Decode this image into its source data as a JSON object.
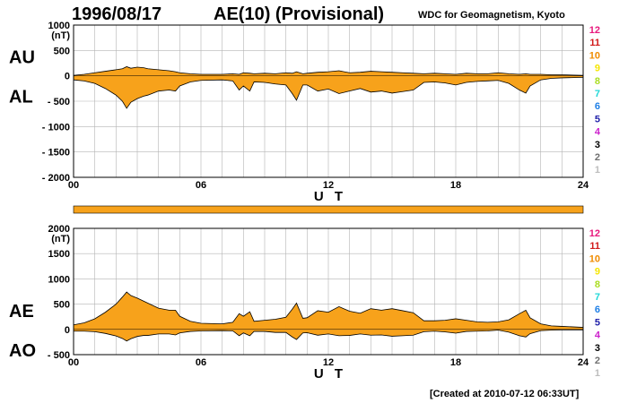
{
  "header": {
    "date": "1996/08/17",
    "title": "AE(10) (Provisional)",
    "source": "WDC for Geomagnetism, Kyoto"
  },
  "footer": {
    "created": "[Created at 2010-07-12 06:33UT]"
  },
  "colors": {
    "fill": "#f7a21b",
    "line": "#000000",
    "grid": "#b4b4b4"
  },
  "legend": [
    {
      "label": "12",
      "color": "#e8197d"
    },
    {
      "label": "11",
      "color": "#d11a1a"
    },
    {
      "label": "10",
      "color": "#f08c00"
    },
    {
      "label": "9",
      "color": "#f5e600"
    },
    {
      "label": "8",
      "color": "#aadd22"
    },
    {
      "label": "7",
      "color": "#22d8d8"
    },
    {
      "label": "6",
      "color": "#1e7fe6"
    },
    {
      "label": "5",
      "color": "#2222aa"
    },
    {
      "label": "4",
      "color": "#cc22cc"
    },
    {
      "label": "3",
      "color": "#000000"
    },
    {
      "label": "2",
      "color": "#707070"
    },
    {
      "label": "1",
      "color": "#bdbdbd"
    }
  ],
  "chart_data": [
    {
      "type": "area",
      "panel": "upper",
      "left_label_top": "AU",
      "left_label_bottom": "AL",
      "unit": "(nT)",
      "xlabel": "U T",
      "xlim": [
        0,
        24
      ],
      "ylim": [
        -2000,
        1000
      ],
      "yticks": [
        1000,
        500,
        0,
        -500,
        -1000,
        -1500,
        -2000
      ],
      "ytick_labels": [
        "1000",
        "500",
        "0",
        "- 500",
        "- 1000",
        "- 1500",
        "- 2000"
      ],
      "xticks": [
        0,
        6,
        12,
        18,
        24
      ],
      "xtick_labels": [
        "00",
        "06",
        "12",
        "18",
        "24"
      ],
      "x": [
        0,
        0.5,
        1,
        1.5,
        2,
        2.3,
        2.5,
        2.7,
        3,
        3.3,
        3.5,
        4,
        4.5,
        4.8,
        5,
        5.5,
        6,
        7,
        7.5,
        7.8,
        8,
        8.3,
        8.5,
        9,
        9.5,
        10,
        10.3,
        10.5,
        10.8,
        11,
        11.5,
        12,
        12.5,
        13,
        13.5,
        14,
        14.5,
        15,
        15.5,
        16,
        16.5,
        17,
        17.5,
        18,
        18.5,
        19,
        19.5,
        20,
        20.5,
        21,
        21.3,
        21.5,
        22,
        22.5,
        23,
        24
      ],
      "series": [
        {
          "name": "AU",
          "values": [
            10,
            30,
            60,
            90,
            120,
            140,
            180,
            150,
            170,
            160,
            140,
            120,
            100,
            80,
            60,
            40,
            30,
            30,
            40,
            30,
            60,
            50,
            40,
            50,
            40,
            60,
            50,
            80,
            40,
            50,
            70,
            80,
            100,
            60,
            70,
            90,
            80,
            70,
            60,
            50,
            40,
            50,
            40,
            30,
            50,
            40,
            40,
            60,
            40,
            30,
            40,
            30,
            30,
            20,
            20,
            10
          ]
        },
        {
          "name": "AL",
          "values": [
            -80,
            -100,
            -150,
            -250,
            -380,
            -500,
            -640,
            -520,
            -450,
            -400,
            -380,
            -300,
            -280,
            -300,
            -200,
            -120,
            -90,
            -80,
            -100,
            -280,
            -200,
            -300,
            -120,
            -130,
            -160,
            -180,
            -350,
            -480,
            -180,
            -180,
            -300,
            -260,
            -350,
            -300,
            -250,
            -320,
            -300,
            -340,
            -310,
            -280,
            -130,
            -120,
            -140,
            -180,
            -130,
            -110,
            -100,
            -90,
            -150,
            -280,
            -340,
            -200,
            -80,
            -50,
            -40,
            -30
          ]
        }
      ]
    },
    {
      "type": "area",
      "panel": "lower",
      "left_label_top": "AE",
      "left_label_bottom": "AO",
      "unit": "(nT)",
      "xlabel": "U T",
      "xlim": [
        0,
        24
      ],
      "ylim": [
        -500,
        2000
      ],
      "yticks": [
        2000,
        1500,
        1000,
        500,
        0,
        -500
      ],
      "ytick_labels": [
        "2000",
        "1500",
        "1000",
        "500",
        "0",
        "- 500"
      ],
      "xticks": [
        0,
        6,
        12,
        18,
        24
      ],
      "xtick_labels": [
        "00",
        "06",
        "12",
        "18",
        "24"
      ],
      "x": [
        0,
        0.5,
        1,
        1.5,
        2,
        2.3,
        2.5,
        2.7,
        3,
        3.3,
        3.5,
        4,
        4.5,
        4.8,
        5,
        5.5,
        6,
        7,
        7.5,
        7.8,
        8,
        8.3,
        8.5,
        9,
        9.5,
        10,
        10.3,
        10.5,
        10.8,
        11,
        11.5,
        12,
        12.5,
        13,
        13.5,
        14,
        14.5,
        15,
        15.5,
        16,
        16.5,
        17,
        17.5,
        18,
        18.5,
        19,
        19.5,
        20,
        20.5,
        21,
        21.3,
        21.5,
        22,
        22.5,
        23,
        24
      ],
      "series": [
        {
          "name": "AE",
          "values": [
            90,
            130,
            210,
            340,
            500,
            640,
            740,
            670,
            620,
            560,
            520,
            420,
            380,
            380,
            260,
            160,
            120,
            110,
            140,
            310,
            260,
            350,
            160,
            180,
            200,
            240,
            400,
            520,
            220,
            230,
            370,
            340,
            450,
            360,
            320,
            410,
            380,
            410,
            370,
            330,
            170,
            170,
            180,
            210,
            180,
            150,
            140,
            150,
            190,
            310,
            380,
            230,
            110,
            70,
            60,
            40
          ]
        },
        {
          "name": "AO",
          "values": [
            -35,
            -35,
            -45,
            -80,
            -130,
            -180,
            -230,
            -185,
            -140,
            -120,
            -120,
            -90,
            -90,
            -110,
            -70,
            -40,
            -30,
            -25,
            -30,
            -125,
            -70,
            -125,
            -40,
            -40,
            -60,
            -60,
            -150,
            -200,
            -70,
            -65,
            -115,
            -90,
            -125,
            -120,
            -90,
            -115,
            -110,
            -135,
            -125,
            -115,
            -45,
            -35,
            -50,
            -75,
            -40,
            -35,
            -30,
            -15,
            -55,
            -125,
            -150,
            -85,
            -25,
            -15,
            -10,
            -10
          ]
        }
      ]
    }
  ]
}
